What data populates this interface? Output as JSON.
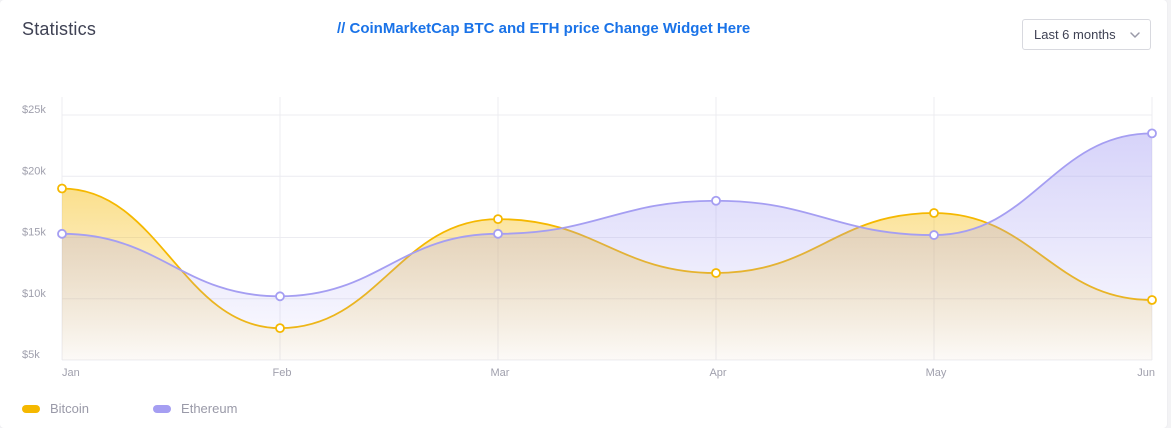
{
  "card": {
    "title": "Statistics",
    "widget_note": "// CoinMarketCap BTC and ETH price Change Widget Here",
    "range_select": {
      "value": "Last 6 months",
      "icon": "chevron-down-icon"
    }
  },
  "colors": {
    "bitcoin": "#f5b800",
    "ethereum": "#a59ef2",
    "grid": "#ececf1",
    "tick": "#a0a0ad"
  },
  "chart_data": {
    "type": "area",
    "categories": [
      "Jan",
      "Feb",
      "Mar",
      "Apr",
      "May",
      "Jun"
    ],
    "y_ticks": [
      "$5k",
      "$10k",
      "$15k",
      "$20k",
      "$25k"
    ],
    "y_tick_values": [
      5000,
      10000,
      15000,
      20000,
      25000
    ],
    "ylim": [
      5000,
      25000
    ],
    "grid": true,
    "legend_position": "bottom-left",
    "series": [
      {
        "name": "Bitcoin",
        "color": "#f5b800",
        "values": [
          19000,
          7600,
          16500,
          12100,
          17000,
          9900
        ]
      },
      {
        "name": "Ethereum",
        "color": "#a59ef2",
        "values": [
          15300,
          10200,
          15300,
          18000,
          15200,
          23500
        ]
      }
    ]
  }
}
